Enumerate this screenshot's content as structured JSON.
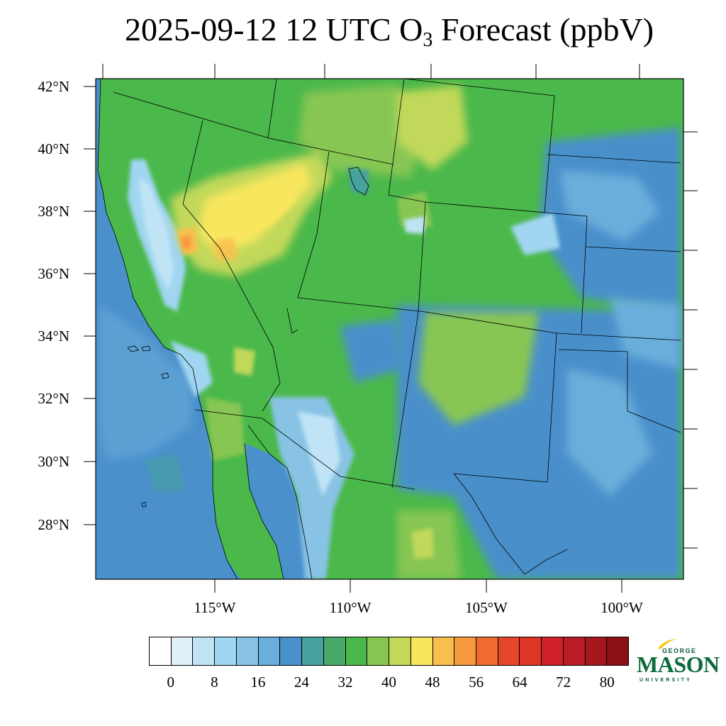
{
  "title": {
    "prefix": "2025-09-12 12 UTC O",
    "subscript": "3",
    "suffix": " Forecast (ppbV)"
  },
  "map": {
    "latitude_labels": [
      "42°N",
      "40°N",
      "38°N",
      "36°N",
      "34°N",
      "32°N",
      "30°N",
      "28°N"
    ],
    "longitude_labels": [
      "115°W",
      "110°W",
      "105°W",
      "100°W"
    ],
    "extent": {
      "lon_min": -119.2,
      "lon_max": -97.6,
      "lat_min": 26.3,
      "lat_max": 42.2
    },
    "projection": "Lambert conformal (approx.)"
  },
  "colorbar": {
    "colors": [
      "#ffffff",
      "#e0f1fa",
      "#c0e4f5",
      "#a0d6f1",
      "#88c3e5",
      "#6aaedb",
      "#4a90cb",
      "#47a19d",
      "#49a96b",
      "#4ab84a",
      "#87c653",
      "#c2d85a",
      "#f9e65e",
      "#f9bf4e",
      "#f7993d",
      "#f06b2f",
      "#e6472a",
      "#dd3526",
      "#d0202a",
      "#b81c24",
      "#a3171d",
      "#8b1014"
    ],
    "tick_labels": [
      "0",
      "8",
      "16",
      "24",
      "32",
      "40",
      "48",
      "56",
      "64",
      "72",
      "80"
    ]
  },
  "logo": {
    "line1": "GEORGE",
    "line2": "MASON",
    "line3": "UNIVERSITY"
  },
  "field_colors": {
    "ocean": "#4a90cb",
    "land_base": "#4ab84a",
    "high_ozone": "#f9e65e",
    "peak": "#f06b2f"
  }
}
